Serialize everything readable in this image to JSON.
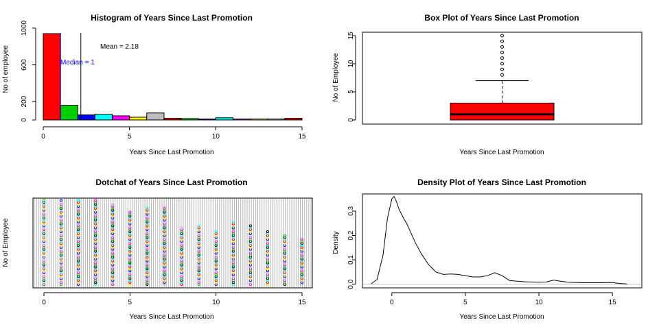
{
  "chart_data": [
    {
      "type": "bar",
      "title": "Histogram of Years Since Last Promotion",
      "xlabel": "Years Since Last Promotion",
      "ylabel": "No of employee",
      "xlim": [
        0,
        15
      ],
      "ylim": [
        0,
        1000
      ],
      "xticks": [
        "0",
        "5",
        "10",
        "15"
      ],
      "yticks": [
        "0",
        "200",
        "600",
        "1000"
      ],
      "bins": [
        {
          "from": 0,
          "to": 1,
          "value": 940,
          "color": "#ff0000"
        },
        {
          "from": 1,
          "to": 2,
          "value": 160,
          "color": "#00cd00"
        },
        {
          "from": 2,
          "to": 3,
          "value": 55,
          "color": "#0000ff"
        },
        {
          "from": 3,
          "to": 4,
          "value": 62,
          "color": "#00ffff"
        },
        {
          "from": 4,
          "to": 5,
          "value": 45,
          "color": "#ff00ff"
        },
        {
          "from": 5,
          "to": 6,
          "value": 30,
          "color": "#ffff00"
        },
        {
          "from": 6,
          "to": 7,
          "value": 76,
          "color": "#bebebe"
        },
        {
          "from": 7,
          "to": 8,
          "value": 18,
          "color": "#ff0000"
        },
        {
          "from": 8,
          "to": 9,
          "value": 15,
          "color": "#00cd00"
        },
        {
          "from": 9,
          "to": 10,
          "value": 10,
          "color": "#0000ff"
        },
        {
          "from": 10,
          "to": 11,
          "value": 24,
          "color": "#00ffff"
        },
        {
          "from": 11,
          "to": 12,
          "value": 10,
          "color": "#ff00ff"
        },
        {
          "from": 12,
          "to": 13,
          "value": 10,
          "color": "#ffff00"
        },
        {
          "from": 13,
          "to": 14,
          "value": 10,
          "color": "#bebebe"
        },
        {
          "from": 14,
          "to": 15,
          "value": 18,
          "color": "#ff0000"
        }
      ],
      "mean": 2.18,
      "median": 1,
      "mean_label": "Mean = 2.18",
      "median_label": "Median = 1"
    },
    {
      "type": "box",
      "title": "Box Plot of Years Since Last Promotion",
      "xlabel": "Years Since Last Promotion",
      "ylabel": "No of Employee",
      "ylim": [
        0,
        15
      ],
      "yticks": [
        "0",
        "5",
        "10",
        "15"
      ],
      "box": {
        "min": 0,
        "q1": 0,
        "median": 1,
        "q3": 3,
        "whisker_high": 7,
        "color": "#ff0000"
      },
      "outliers": [
        8,
        9,
        10,
        11,
        12,
        13,
        14,
        15
      ]
    },
    {
      "type": "scatter",
      "title": "Dotchat of Years Since Last Promotion",
      "xlabel": "Years Since Last Promotion",
      "ylabel": "No of Employee",
      "xlim": [
        0,
        15
      ],
      "xticks": [
        "0",
        "5",
        "10",
        "15"
      ],
      "columns": [
        {
          "x": 0,
          "count": 44
        },
        {
          "x": 1,
          "count": 44
        },
        {
          "x": 2,
          "count": 44
        },
        {
          "x": 3,
          "count": 44
        },
        {
          "x": 4,
          "count": 42
        },
        {
          "x": 5,
          "count": 38
        },
        {
          "x": 6,
          "count": 40
        },
        {
          "x": 7,
          "count": 40
        },
        {
          "x": 8,
          "count": 30
        },
        {
          "x": 9,
          "count": 31
        },
        {
          "x": 10,
          "count": 28
        },
        {
          "x": 11,
          "count": 33
        },
        {
          "x": 12,
          "count": 31
        },
        {
          "x": 13,
          "count": 28
        },
        {
          "x": 14,
          "count": 26
        },
        {
          "x": 15,
          "count": 24
        }
      ],
      "dot_colors": [
        "#ff0000",
        "#00cd00",
        "#0000ff",
        "#00ffff",
        "#ff00ff",
        "#ffff00",
        "#000000",
        "#bebebe"
      ]
    },
    {
      "type": "line",
      "title": "Density Plot of Years Since Last Promotion",
      "xlabel": "Years Since Last Promotion",
      "ylabel": "Density",
      "xlim": [
        -2,
        17
      ],
      "ylim": [
        -0.015,
        0.37
      ],
      "xticks": [
        "0",
        "5",
        "10",
        "15"
      ],
      "yticks": [
        "0.0",
        "0.1",
        "0.2",
        "0.3"
      ],
      "x": [
        -1.4,
        -1.0,
        -0.6,
        -0.3,
        0.0,
        0.15,
        0.3,
        0.5,
        0.8,
        1.0,
        1.3,
        1.6,
        2.0,
        2.5,
        3.0,
        3.5,
        4.0,
        4.5,
        5.0,
        5.5,
        6.0,
        6.5,
        7.0,
        7.5,
        8.0,
        9.0,
        10.0,
        10.5,
        11.0,
        11.5,
        12.0,
        13.0,
        14.0,
        15.0,
        15.5,
        16.0
      ],
      "y": [
        0.002,
        0.02,
        0.12,
        0.27,
        0.35,
        0.36,
        0.34,
        0.305,
        0.27,
        0.25,
        0.21,
        0.17,
        0.125,
        0.08,
        0.05,
        0.04,
        0.042,
        0.04,
        0.035,
        0.03,
        0.03,
        0.035,
        0.047,
        0.035,
        0.015,
        0.01,
        0.008,
        0.009,
        0.017,
        0.012,
        0.008,
        0.006,
        0.006,
        0.007,
        0.003,
        0.001
      ]
    }
  ]
}
